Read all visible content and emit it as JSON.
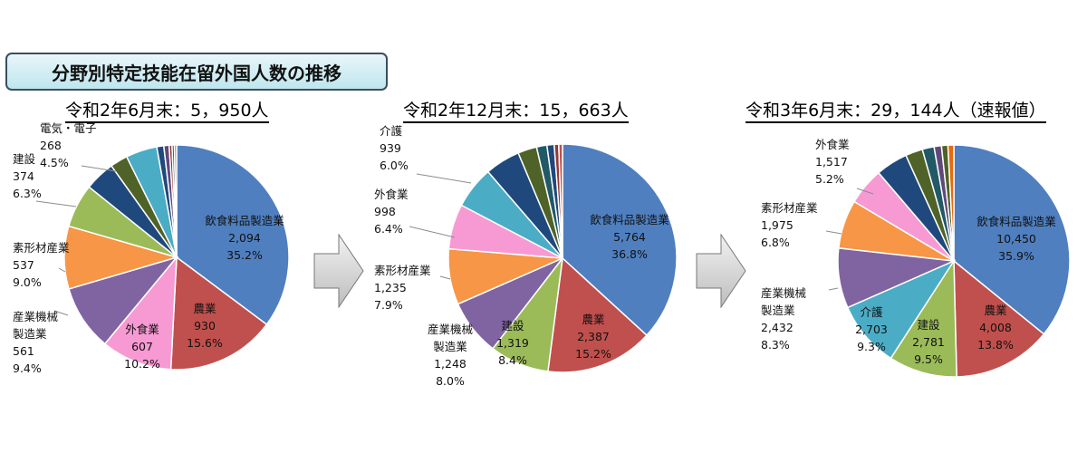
{
  "header": {
    "title": "分野別特定技能在留外国人数の推移"
  },
  "colors": {
    "飲食料品製造業": "#4f7fbf",
    "農業": "#c0504d",
    "外食業": "#f79ad3",
    "産業機械製造業": "#8064a2",
    "素形材産業": "#f79646",
    "建設": "#9bbb59",
    "電気・電子": "#4bacc6",
    "介護": "#4bacc6",
    "dark_navy": "#1f497d",
    "dark_green": "#4f6228",
    "dark_teal": "#215967",
    "purple_dark": "#60497a",
    "maroon": "#953735",
    "gray": "#7f7f7f",
    "orange_dark": "#e46c0a"
  },
  "chart_data": [
    {
      "type": "pie",
      "title": "令和2年6月末：5，950人",
      "slices": [
        {
          "label": "飲食料品製造業",
          "value": 2094,
          "value_text": "2,094",
          "pct": "35.2%",
          "color": "#4f7fbf"
        },
        {
          "label": "農業",
          "value": 930,
          "value_text": "930",
          "pct": "15.6%",
          "color": "#c0504d"
        },
        {
          "label": "外食業",
          "value": 607,
          "value_text": "607",
          "pct": "10.2%",
          "color": "#f79ad3"
        },
        {
          "label": "産業機械製造業",
          "value": 561,
          "value_text": "561",
          "pct": "9.4%",
          "color": "#8064a2"
        },
        {
          "label": "素形材産業",
          "value": 537,
          "value_text": "537",
          "pct": "9.0%",
          "color": "#f79646"
        },
        {
          "label": "建設",
          "value": 374,
          "value_text": "374",
          "pct": "6.3%",
          "color": "#9bbb59"
        },
        {
          "label": "",
          "value": 260,
          "color": "#1f497d"
        },
        {
          "label": "",
          "value": 150,
          "color": "#4f6228"
        },
        {
          "label": "電気・電子",
          "value": 268,
          "value_text": "268",
          "pct": "4.5%",
          "color": "#4bacc6"
        },
        {
          "label": "",
          "value": 60,
          "color": "#1f497d"
        },
        {
          "label": "",
          "value": 45,
          "color": "#60497a"
        },
        {
          "label": "",
          "value": 25,
          "color": "#953735"
        },
        {
          "label": "",
          "value": 20,
          "color": "#215967"
        },
        {
          "label": "",
          "value": 19,
          "color": "#7f7f7f"
        }
      ]
    },
    {
      "type": "pie",
      "title": "令和2年12月末：15，663人",
      "slices": [
        {
          "label": "飲食料品製造業",
          "value": 5764,
          "value_text": "5,764",
          "pct": "36.8%",
          "color": "#4f7fbf"
        },
        {
          "label": "農業",
          "value": 2387,
          "value_text": "2,387",
          "pct": "15.2%",
          "color": "#c0504d"
        },
        {
          "label": "建設",
          "value": 1319,
          "value_text": "1,319",
          "pct": "8.4%",
          "color": "#9bbb59"
        },
        {
          "label": "産業機械製造業",
          "value": 1248,
          "value_text": "1,248",
          "pct": "8.0%",
          "color": "#8064a2"
        },
        {
          "label": "素形材産業",
          "value": 1235,
          "value_text": "1,235",
          "pct": "7.9%",
          "color": "#f79646"
        },
        {
          "label": "外食業",
          "value": 998,
          "value_text": "998",
          "pct": "6.4%",
          "color": "#f79ad3"
        },
        {
          "label": "介護",
          "value": 939,
          "value_text": "939",
          "pct": "6.0%",
          "color": "#4bacc6"
        },
        {
          "label": "",
          "value": 780,
          "color": "#1f497d"
        },
        {
          "label": "",
          "value": 420,
          "color": "#4f6228"
        },
        {
          "label": "",
          "value": 230,
          "color": "#215967"
        },
        {
          "label": "",
          "value": 160,
          "color": "#1f497d"
        },
        {
          "label": "",
          "value": 100,
          "color": "#953735"
        },
        {
          "label": "",
          "value": 83,
          "color": "#c0504d"
        }
      ]
    },
    {
      "type": "pie",
      "title": "令和3年6月末：29，144人（速報値）",
      "slices": [
        {
          "label": "飲食料品製造業",
          "value": 10450,
          "value_text": "10,450",
          "pct": "35.9%",
          "color": "#4f7fbf"
        },
        {
          "label": "農業",
          "value": 4008,
          "value_text": "4,008",
          "pct": "13.8%",
          "color": "#c0504d"
        },
        {
          "label": "建設",
          "value": 2781,
          "value_text": "2,781",
          "pct": "9.5%",
          "color": "#9bbb59"
        },
        {
          "label": "介護",
          "value": 2703,
          "value_text": "2,703",
          "pct": "9.3%",
          "color": "#4bacc6"
        },
        {
          "label": "産業機械製造業",
          "value": 2432,
          "value_text": "2,432",
          "pct": "8.3%",
          "color": "#8064a2"
        },
        {
          "label": "素形材産業",
          "value": 1975,
          "value_text": "1,975",
          "pct": "6.8%",
          "color": "#f79646"
        },
        {
          "label": "外食業",
          "value": 1517,
          "value_text": "1,517",
          "pct": "5.2%",
          "color": "#f79ad3"
        },
        {
          "label": "",
          "value": 1300,
          "color": "#1f497d"
        },
        {
          "label": "",
          "value": 700,
          "color": "#4f6228"
        },
        {
          "label": "",
          "value": 480,
          "color": "#215967"
        },
        {
          "label": "",
          "value": 300,
          "color": "#60497a"
        },
        {
          "label": "",
          "value": 260,
          "color": "#4f6228"
        },
        {
          "label": "",
          "value": 238,
          "color": "#e46c0a"
        }
      ]
    }
  ]
}
